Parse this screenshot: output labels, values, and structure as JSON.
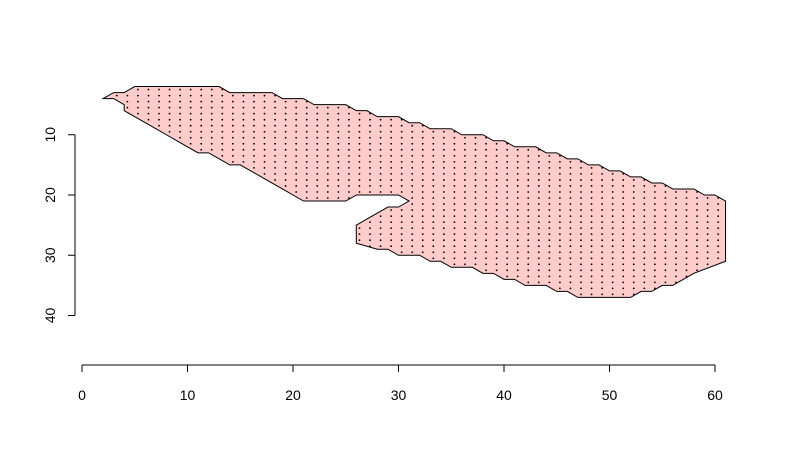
{
  "chart_data": {
    "type": "scatter",
    "title": "",
    "xlabel": "",
    "ylabel": "",
    "xlim": [
      0,
      61
    ],
    "ylim": [
      0,
      46
    ],
    "y_reversed": true,
    "x_ticks": [
      0,
      10,
      20,
      30,
      40,
      50,
      60
    ],
    "y_ticks": [
      10,
      20,
      30,
      40
    ],
    "x_tick_labels": [
      "0",
      "10",
      "20",
      "30",
      "40",
      "50",
      "60"
    ],
    "y_tick_labels": [
      "10",
      "20",
      "30",
      "40"
    ],
    "grid": false,
    "legend": "none",
    "colors": {
      "region_fill": "#ffcccc",
      "outline": "#000000",
      "points": "#000000",
      "axis": "#000000"
    },
    "region_polygon": [
      [
        2,
        4
      ],
      [
        3,
        3
      ],
      [
        4,
        3
      ],
      [
        5,
        2
      ],
      [
        13,
        2
      ],
      [
        14,
        3
      ],
      [
        18,
        3
      ],
      [
        19,
        4
      ],
      [
        21,
        4
      ],
      [
        22,
        5
      ],
      [
        25,
        5
      ],
      [
        26,
        6
      ],
      [
        27,
        6
      ],
      [
        28,
        7
      ],
      [
        30,
        7
      ],
      [
        31,
        8
      ],
      [
        32,
        8
      ],
      [
        33,
        9
      ],
      [
        35,
        9
      ],
      [
        36,
        10
      ],
      [
        38,
        10
      ],
      [
        39,
        11
      ],
      [
        40,
        11
      ],
      [
        41,
        12
      ],
      [
        43,
        12
      ],
      [
        44,
        13
      ],
      [
        45,
        13
      ],
      [
        46,
        14
      ],
      [
        47,
        14
      ],
      [
        48,
        15
      ],
      [
        49,
        15
      ],
      [
        50,
        16
      ],
      [
        51,
        16
      ],
      [
        52,
        17
      ],
      [
        53,
        17
      ],
      [
        54,
        18
      ],
      [
        55,
        18
      ],
      [
        56,
        19
      ],
      [
        58,
        19
      ],
      [
        59,
        20
      ],
      [
        60,
        20
      ],
      [
        61,
        21
      ],
      [
        61,
        31
      ],
      [
        58,
        33
      ],
      [
        57,
        34
      ],
      [
        56,
        35
      ],
      [
        55,
        35
      ],
      [
        54,
        36
      ],
      [
        53,
        36
      ],
      [
        52,
        37
      ],
      [
        47,
        37
      ],
      [
        46,
        36
      ],
      [
        45,
        36
      ],
      [
        44,
        35
      ],
      [
        42,
        35
      ],
      [
        41,
        34
      ],
      [
        40,
        34
      ],
      [
        39,
        33
      ],
      [
        38,
        33
      ],
      [
        37,
        32
      ],
      [
        35,
        32
      ],
      [
        34,
        31
      ],
      [
        33,
        31
      ],
      [
        32,
        30
      ],
      [
        30,
        30
      ],
      [
        29,
        29
      ],
      [
        28,
        29
      ],
      [
        26,
        28
      ],
      [
        26,
        25
      ],
      [
        27,
        24
      ],
      [
        28,
        23
      ],
      [
        29,
        22
      ],
      [
        30,
        22
      ],
      [
        31,
        21
      ],
      [
        30,
        20
      ],
      [
        26,
        20
      ],
      [
        25,
        21
      ],
      [
        21,
        21
      ],
      [
        20,
        20
      ],
      [
        19,
        19
      ],
      [
        18,
        18
      ],
      [
        17,
        17
      ],
      [
        16,
        16
      ],
      [
        15,
        15
      ],
      [
        14,
        15
      ],
      [
        13,
        14
      ],
      [
        12,
        13
      ],
      [
        11,
        13
      ],
      [
        10,
        12
      ],
      [
        9,
        11
      ],
      [
        8,
        10
      ],
      [
        7,
        9
      ],
      [
        6,
        8
      ],
      [
        5,
        7
      ],
      [
        4,
        6
      ],
      [
        4,
        5
      ],
      [
        3,
        4
      ]
    ],
    "point_grid": {
      "x_start": 3,
      "x_end": 61,
      "x_step": 1,
      "y_start": 2,
      "y_end": 36,
      "y_step": 1
    }
  }
}
